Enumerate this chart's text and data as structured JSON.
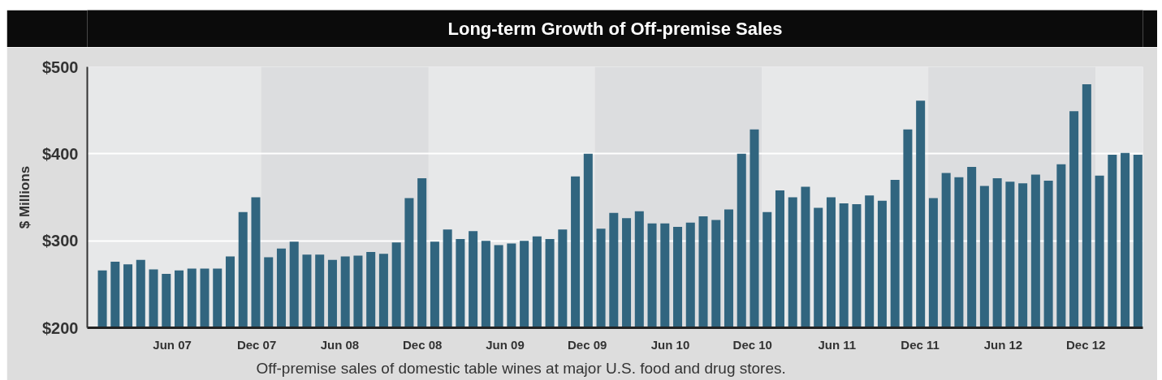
{
  "chart_data": {
    "type": "bar",
    "title": "Long-term Growth of Off-premise Sales",
    "ylabel": "$ Millions",
    "annotations": [
      "Off-premise sales of domestic table wines at major U.S. food and drug stores."
    ],
    "x": [
      "2007-01-18",
      "2007-02-15",
      "2007-03-15",
      "2007-04-12",
      "2007-05-10",
      "2007-06-07",
      "2007-07-05",
      "2007-08-02",
      "2007-08-30",
      "2007-09-27",
      "2007-10-25",
      "2007-11-22",
      "2007-12-20",
      "2008-01-17",
      "2008-02-14",
      "2008-03-13",
      "2008-04-10",
      "2008-05-08",
      "2008-06-05",
      "2008-07-03",
      "2008-07-31",
      "2008-08-28",
      "2008-09-25",
      "2008-10-23",
      "2008-11-20",
      "2008-12-18",
      "2009-01-15",
      "2009-02-12",
      "2009-03-12",
      "2009-04-09",
      "2009-05-07",
      "2009-06-04",
      "2009-07-02",
      "2009-07-30",
      "2009-08-27",
      "2009-09-24",
      "2009-10-22",
      "2009-11-19",
      "2009-12-17",
      "2010-01-14",
      "2010-02-11",
      "2010-03-11",
      "2010-04-08",
      "2010-05-06",
      "2010-06-03",
      "2010-07-01",
      "2010-07-29",
      "2010-08-26",
      "2010-09-23",
      "2010-10-21",
      "2010-11-18",
      "2010-12-16",
      "2011-01-13",
      "2011-02-10",
      "2011-03-10",
      "2011-04-07",
      "2011-05-05",
      "2011-06-02",
      "2011-06-30",
      "2011-07-28",
      "2011-08-25",
      "2011-09-22",
      "2011-10-20",
      "2011-11-17",
      "2011-12-15",
      "2012-01-12",
      "2012-02-09",
      "2012-03-08",
      "2012-04-05",
      "2012-05-03",
      "2012-05-31",
      "2012-06-28",
      "2012-07-26",
      "2012-08-23",
      "2012-09-20",
      "2012-10-18",
      "2012-11-15",
      "2012-12-13",
      "2013-01-10",
      "2013-02-07",
      "2013-03-07",
      "2013-04-04"
    ],
    "values": [
      266,
      276,
      273,
      278,
      267,
      262,
      266,
      268,
      268,
      268,
      282,
      333,
      350,
      281,
      291,
      299,
      284,
      284,
      278,
      282,
      283,
      287,
      285,
      298,
      349,
      372,
      299,
      313,
      302,
      311,
      300,
      295,
      297,
      300,
      305,
      302,
      313,
      374,
      400,
      314,
      332,
      326,
      334,
      320,
      320,
      316,
      321,
      328,
      324,
      336,
      400,
      428,
      333,
      358,
      350,
      362,
      338,
      350,
      343,
      342,
      352,
      346,
      370,
      428,
      461,
      349,
      378,
      373,
      385,
      363,
      372,
      368,
      366,
      376,
      369,
      388,
      449,
      480,
      375,
      399,
      401,
      399
    ],
    "color": "#31657f",
    "xlim": [
      "2006-12-16",
      "2013-04-15"
    ],
    "xticks": [
      {
        "value": "2007-06-20",
        "label": "Jun 07"
      },
      {
        "value": "2007-12-22",
        "label": "Dec 07"
      },
      {
        "value": "2008-06-21",
        "label": "Jun 08"
      },
      {
        "value": "2008-12-19",
        "label": "Dec 08"
      },
      {
        "value": "2009-06-18",
        "label": "Jun 09"
      },
      {
        "value": "2009-12-15",
        "label": "Dec 09"
      },
      {
        "value": "2010-06-15",
        "label": "Jun 10"
      },
      {
        "value": "2010-12-12",
        "label": "Dec 10"
      },
      {
        "value": "2011-06-15",
        "label": "Jun 11"
      },
      {
        "value": "2011-12-14",
        "label": "Dec 11"
      },
      {
        "value": "2012-06-13",
        "label": "Jun 12"
      },
      {
        "value": "2012-12-11",
        "label": "Dec 12"
      }
    ],
    "ylim": [
      200,
      500
    ],
    "yticks": [
      {
        "value": 200,
        "label": "$200"
      },
      {
        "value": 300,
        "label": "$300"
      },
      {
        "value": 400,
        "label": "$400"
      },
      {
        "value": 500,
        "label": "$500"
      }
    ],
    "grid": "y",
    "bands": [
      {
        "axis": "x",
        "from": "2008-01-01",
        "to": "2009-01-01",
        "color": "#dcdddf"
      },
      {
        "axis": "x",
        "from": "2010-01-01",
        "to": "2011-01-01",
        "color": "#dcdddf"
      },
      {
        "axis": "x",
        "from": "2012-01-01",
        "to": "2013-01-01",
        "color": "#dcdddf"
      }
    ]
  }
}
